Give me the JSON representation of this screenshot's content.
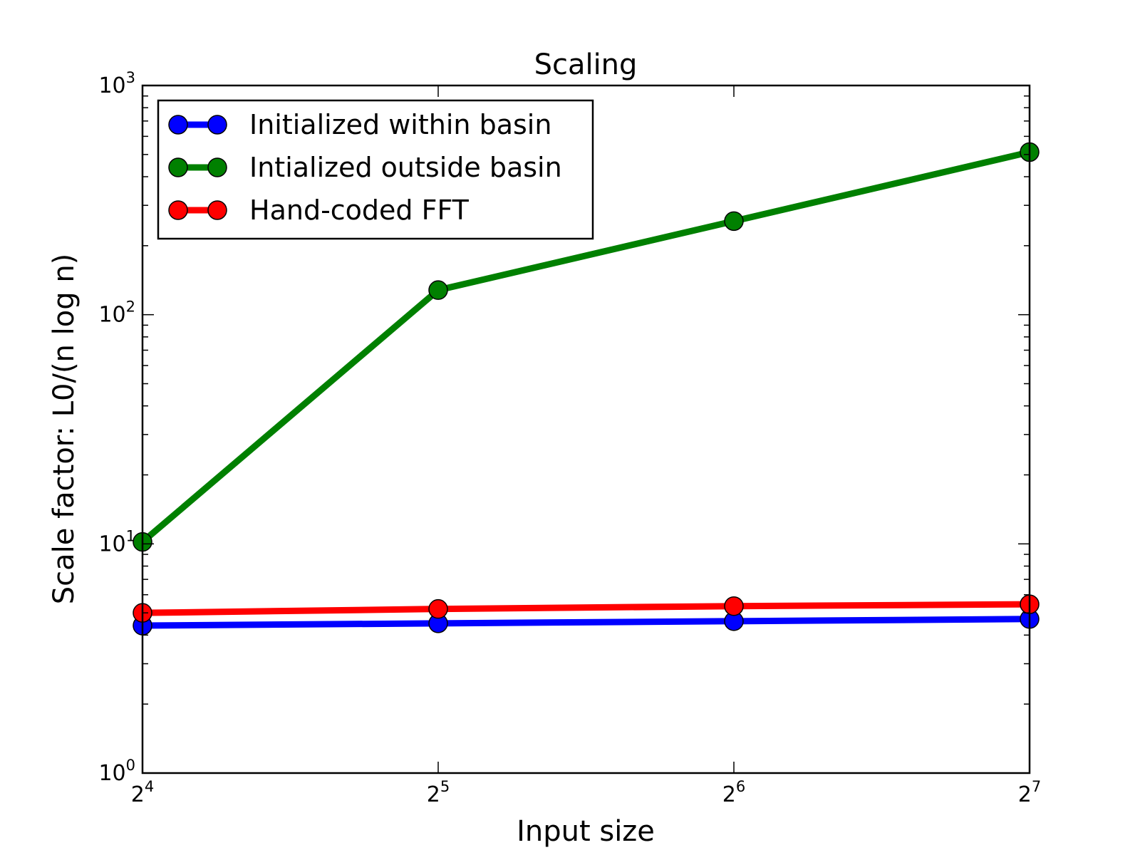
{
  "chart_data": {
    "type": "line",
    "title": "Scaling",
    "xlabel": "Input size",
    "ylabel": "Scale factor: L0/(n log n)",
    "x_scale": "log2",
    "y_scale": "log10",
    "xlim": [
      16,
      128
    ],
    "ylim": [
      1,
      1000
    ],
    "x": [
      16,
      32,
      64,
      128
    ],
    "x_ticks": [
      {
        "value": 16,
        "base": "2",
        "exp": "4"
      },
      {
        "value": 32,
        "base": "2",
        "exp": "5"
      },
      {
        "value": 64,
        "base": "2",
        "exp": "6"
      },
      {
        "value": 128,
        "base": "2",
        "exp": "7"
      }
    ],
    "y_ticks": [
      {
        "value": 1,
        "base": "10",
        "exp": "0"
      },
      {
        "value": 10,
        "base": "10",
        "exp": "1"
      },
      {
        "value": 100,
        "base": "10",
        "exp": "2"
      },
      {
        "value": 1000,
        "base": "10",
        "exp": "3"
      }
    ],
    "grid": false,
    "legend_position": "top-left",
    "series": [
      {
        "name": "Initialized within basin",
        "color": "#0000ff",
        "values": [
          4.4,
          4.5,
          4.6,
          4.7
        ]
      },
      {
        "name": "Intialized outside basin",
        "color": "#008000",
        "values": [
          10.2,
          128,
          256,
          512
        ]
      },
      {
        "name": "Hand-coded FFT",
        "color": "#ff0000",
        "values": [
          5.0,
          5.2,
          5.35,
          5.45
        ]
      }
    ]
  }
}
